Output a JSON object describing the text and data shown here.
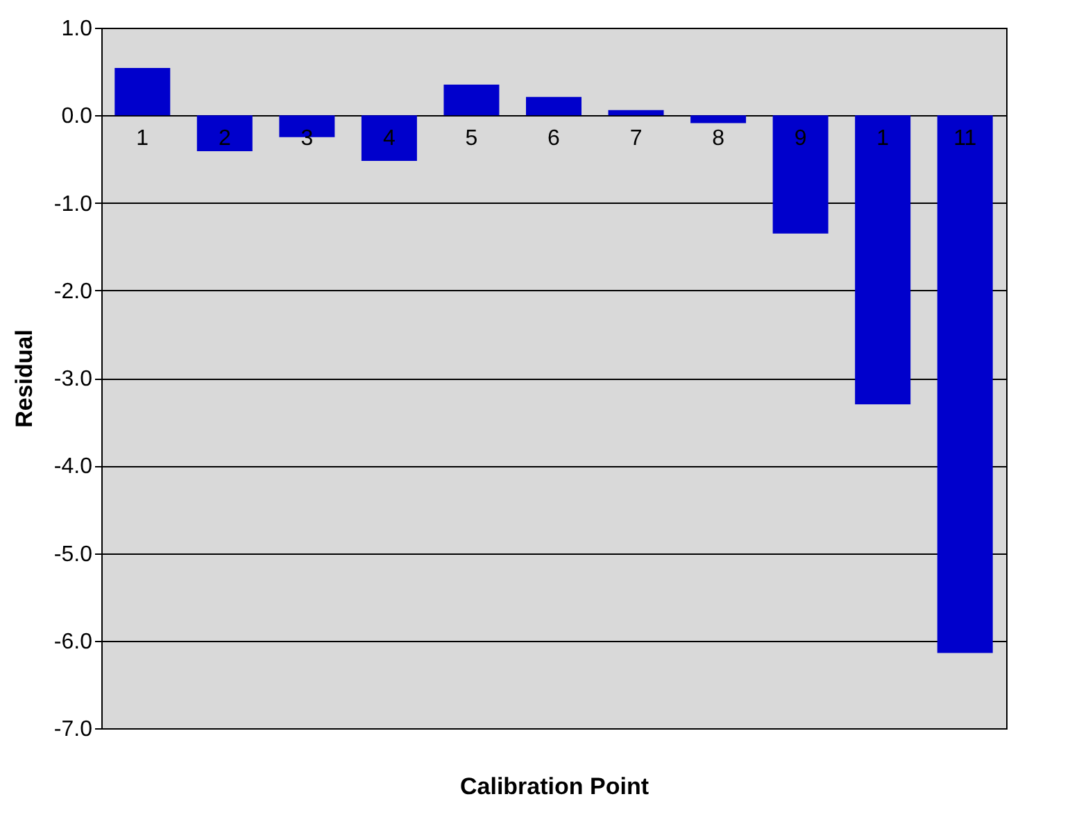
{
  "chart_data": {
    "type": "bar",
    "xlabel": "Calibration Point",
    "ylabel": "Residual",
    "categories": [
      "1",
      "2",
      "3",
      "4",
      "5",
      "6",
      "7",
      "8",
      "9",
      "1",
      "11"
    ],
    "values": [
      0.54,
      -0.41,
      -0.25,
      -0.52,
      0.35,
      0.21,
      0.06,
      -0.09,
      -1.35,
      -3.3,
      -6.14
    ],
    "color": "#0000cc",
    "ylim": [
      -7,
      1
    ],
    "yticks": [
      {
        "value": 1,
        "label": "1.0"
      },
      {
        "value": 0,
        "label": "0.0"
      },
      {
        "value": -1,
        "label": "-1.0"
      },
      {
        "value": -2,
        "label": "-2.0"
      },
      {
        "value": -3,
        "label": "-3.0"
      },
      {
        "value": -4,
        "label": "-4.0"
      },
      {
        "value": -5,
        "label": "-5.0"
      },
      {
        "value": -6,
        "label": "-6.0"
      },
      {
        "value": -7,
        "label": "-7.0"
      }
    ],
    "grid": "y"
  }
}
